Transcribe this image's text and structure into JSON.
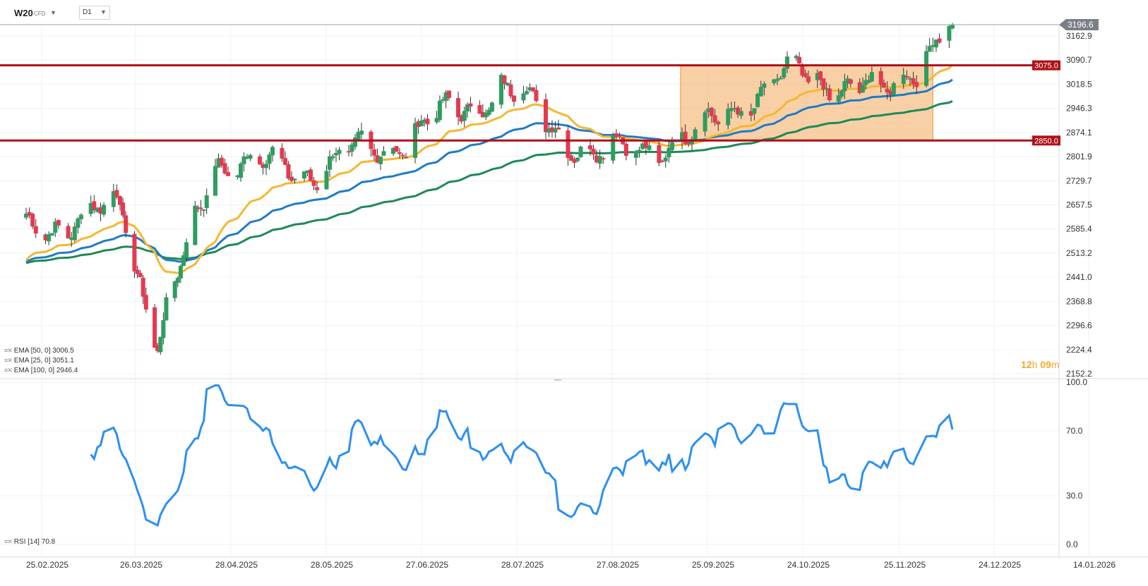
{
  "header": {
    "symbol": "W20",
    "symbol_type": "CFD",
    "timeframe": "D1"
  },
  "timer": {
    "hours": "12",
    "h_unit": "h",
    "minutes": "09",
    "m_unit": "m"
  },
  "colors": {
    "bull": "#2e9d5f",
    "bear": "#e53950",
    "ema25": "#f5b731",
    "ema50": "#1f7bc6",
    "ema100": "#1d8a57",
    "resistance": "#b01018",
    "box_fill": "#f5b06a",
    "rsi": "#2d8ff0",
    "last_price_tag": "#7a7f86"
  },
  "price_axis": {
    "ticks": [
      "3162.9",
      "3090.7",
      "3018.5",
      "2946.3",
      "2874.1",
      "2801.9",
      "2729.7",
      "2657.5",
      "2585.4",
      "2513.2",
      "2441.0",
      "2368.8",
      "2296.6",
      "2224.4",
      "2152.2"
    ]
  },
  "rsi_axis": {
    "ticks": [
      "100.0",
      "70.0",
      "30.0",
      "0.0"
    ]
  },
  "date_axis": {
    "ticks": [
      "25.02.2025",
      "26.03.2025",
      "28.04.2025",
      "28.05.2025",
      "27.06.2025",
      "28.07.2025",
      "27.08.2025",
      "25.09.2025",
      "24.10.2025",
      "25.11.2025",
      "24.12.2025",
      "14.01.2026"
    ]
  },
  "levels": [
    {
      "label": "3075.0",
      "value": 3075.0
    },
    {
      "label": "2850.0",
      "value": 2850.0
    }
  ],
  "last_price": {
    "label": "3196.6",
    "value": 3196.6
  },
  "consolidation_box": {
    "y_from": 2850.0,
    "y_to": 3075.0,
    "x_from": "25.09.2025",
    "x_to": "10.12.2025"
  },
  "legend": {
    "ema50": "EMA [50, 0] 3006.5",
    "ema25": "EMA [25, 0] 3051.1",
    "ema100": "EMA [100, 0] 2946.4",
    "rsi": "RSI [14] 70.8"
  },
  "chart_data": {
    "type": "candlestick",
    "title": "W20 CFD D1",
    "price_range": [
      2152.2,
      3196.6
    ],
    "rsi_range": [
      0,
      100
    ],
    "ohlc_samples": [
      {
        "date": "25.02.2025",
        "close": 2580
      },
      {
        "date": "26.03.2025",
        "close": 2650
      },
      {
        "date": "08.04.2025",
        "close": 2250
      },
      {
        "date": "28.04.2025",
        "close": 2790
      },
      {
        "date": "28.05.2025",
        "close": 2760
      },
      {
        "date": "27.06.2025",
        "close": 2860
      },
      {
        "date": "28.07.2025",
        "close": 3010
      },
      {
        "date": "27.08.2025",
        "close": 2800
      },
      {
        "date": "25.09.2025",
        "close": 2860
      },
      {
        "date": "24.10.2025",
        "close": 3050
      },
      {
        "date": "25.11.2025",
        "close": 2990
      },
      {
        "date": "16.12.2025",
        "close": 3196.6
      }
    ],
    "series": [
      {
        "name": "EMA [25, 0]",
        "last": 3051.1
      },
      {
        "name": "EMA [50, 0]",
        "last": 3006.5
      },
      {
        "name": "EMA [100, 0]",
        "last": 2946.4
      },
      {
        "name": "RSI [14]",
        "last": 70.8
      }
    ],
    "xlabel": "",
    "ylabel": ""
  }
}
